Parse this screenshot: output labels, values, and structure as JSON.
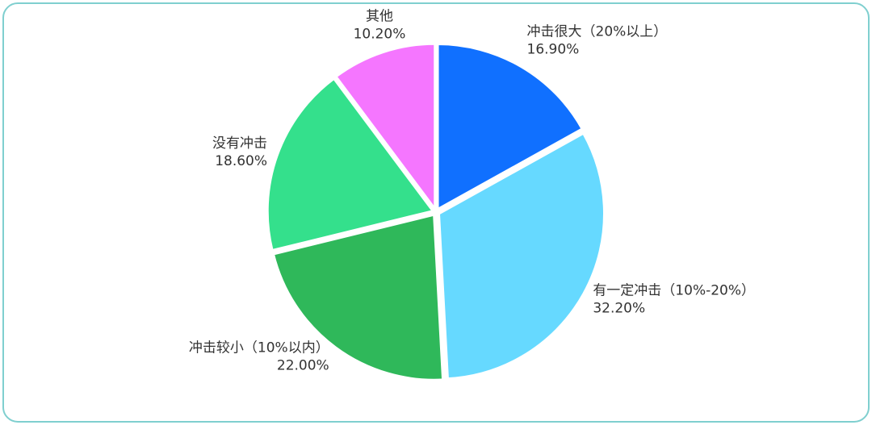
{
  "chart_data": {
    "type": "pie",
    "categories": [
      "冲击很大（20%以上）",
      "有一定冲击（10%-20%）",
      "冲击较小（10%以内）",
      "没有冲击",
      "其他"
    ],
    "values": [
      16.9,
      32.2,
      22.0,
      18.6,
      10.2
    ],
    "value_labels": [
      "16.90%",
      "32.20%",
      "22.00%",
      "18.60%",
      "10.20%"
    ],
    "colors": [
      "#1070ff",
      "#66d9ff",
      "#2fb85a",
      "#34e08c",
      "#f576ff"
    ]
  }
}
